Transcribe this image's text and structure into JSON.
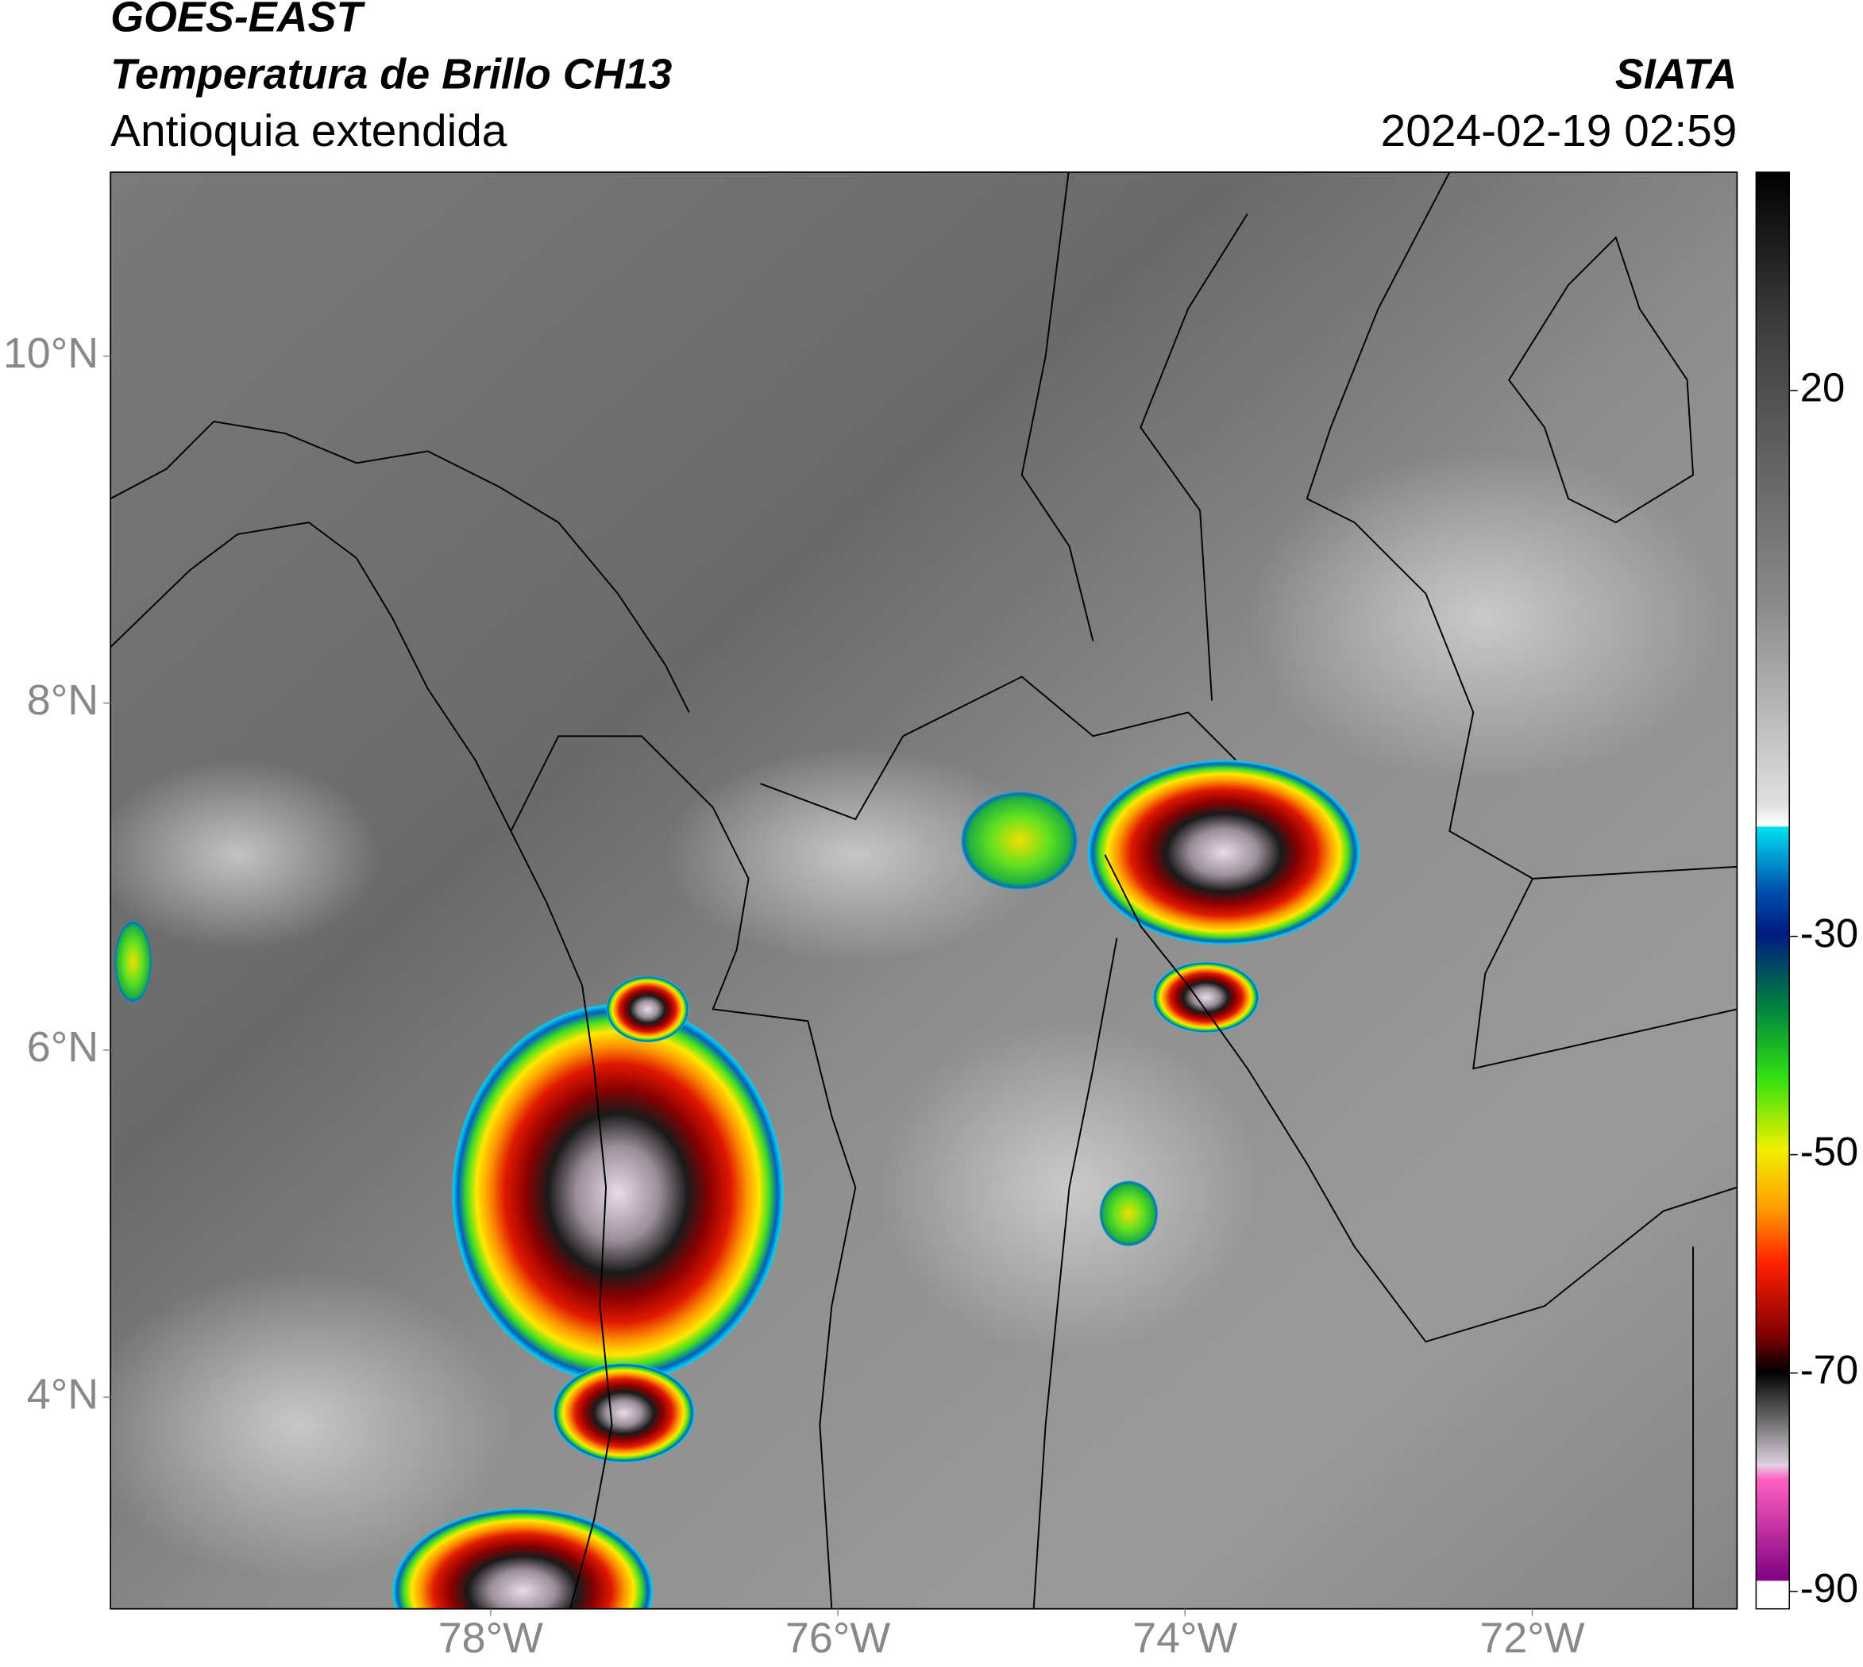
{
  "header": {
    "satellite": "GOES-EAST",
    "product": "Temperatura de Brillo CH13",
    "region": "Antioquia extendida",
    "agency": "SIATA",
    "datetime": "2024-02-19 02:59"
  },
  "map": {
    "xlim": [
      -80.19,
      -70.82
    ],
    "ylim": [
      2.78,
      11.06
    ],
    "xticks": [
      {
        "value": -78,
        "label": "78°W"
      },
      {
        "value": -76,
        "label": "76°W"
      },
      {
        "value": -74,
        "label": "74°W"
      },
      {
        "value": -72,
        "label": "72°W"
      }
    ],
    "yticks": [
      {
        "value": 10,
        "label": "10°N"
      },
      {
        "value": 8,
        "label": "8°N"
      },
      {
        "value": 6,
        "label": "6°N"
      },
      {
        "value": 4,
        "label": "4°N"
      }
    ]
  },
  "colorbar": {
    "lim": [
      -91.6,
      40
    ],
    "ticks": [
      20,
      -30,
      -50,
      -70,
      -90
    ]
  }
}
